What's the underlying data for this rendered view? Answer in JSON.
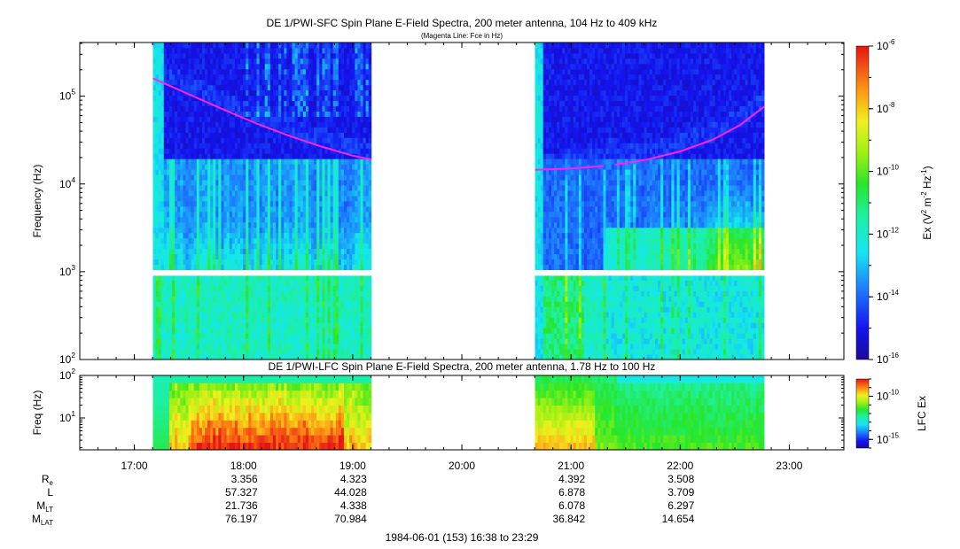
{
  "chart_data": [
    {
      "type": "heatmap",
      "title": "DE 1/PWI-SFC  Spin Plane E-Field Spectra, 200 meter antenna, 104 Hz to 409 kHz",
      "subtitle": "(Magenta Line: Fce in Hz)",
      "ylabel": "Frequency (Hz)",
      "yscale": "log",
      "ylim": [
        100,
        409000
      ],
      "y_ticks": [
        {
          "value": 100,
          "base": "10",
          "exp": "2"
        },
        {
          "value": 1000,
          "base": "10",
          "exp": "3"
        },
        {
          "value": 10000,
          "base": "10",
          "exp": "4"
        },
        {
          "value": 100000,
          "base": "10",
          "exp": "5"
        }
      ],
      "x_range_hours": [
        16.5,
        23.5
      ],
      "data_intervals_hours": [
        [
          17.17,
          19.17
        ],
        [
          20.67,
          22.77
        ]
      ],
      "gap_band_hz": [
        900,
        1000
      ],
      "fce_line": {
        "label": "Fce in Hz",
        "color": "#ff22ff",
        "segments": [
          {
            "t": [
              17.17,
              17.5,
              17.8,
              18.1,
              18.4,
              18.7,
              19.0,
              19.17
            ],
            "hz": [
              160000,
              105000,
              72000,
              50000,
              36000,
              27000,
              21000,
              19000
            ]
          },
          {
            "t": [
              20.67,
              21.0,
              21.3
            ],
            "hz": [
              14500,
              15000,
              16000
            ]
          },
          {
            "t": [
              21.4,
              21.7,
              22.0,
              22.3,
              22.55,
              22.77
            ],
            "hz": [
              16500,
              19000,
              23500,
              32000,
              47000,
              76000
            ]
          }
        ]
      },
      "colorbar": {
        "label_text": "Ex (V",
        "label_sup1": "2",
        "label_mid": " m",
        "label_sup2": "-2",
        "label_mid2": " Hz",
        "label_sup3": "-1",
        "label_end": ")",
        "scale": "log",
        "range": [
          1e-16,
          1e-06
        ],
        "ticks": [
          {
            "value": 1e-06,
            "base": "10",
            "exp": "-6"
          },
          {
            "value": 1e-08,
            "base": "10",
            "exp": "-8"
          },
          {
            "value": 1e-10,
            "base": "10",
            "exp": "-10"
          },
          {
            "value": 1e-12,
            "base": "10",
            "exp": "-12"
          },
          {
            "value": 1e-14,
            "base": "10",
            "exp": "-14"
          },
          {
            "value": 1e-16,
            "base": "10",
            "exp": "-16"
          }
        ]
      }
    },
    {
      "type": "heatmap",
      "title": "DE 1/PWI-LFC  Spin Plane E-Field Spectra, 200 meter antenna, 1.78 Hz to 100 Hz",
      "ylabel": "Freq (Hz)",
      "yscale": "log",
      "ylim": [
        1.78,
        100
      ],
      "y_ticks": [
        {
          "value": 10,
          "base": "10",
          "exp": "1"
        },
        {
          "value": 100,
          "base": "10",
          "exp": "2"
        }
      ],
      "x_range_hours": [
        16.5,
        23.5
      ],
      "data_intervals_hours": [
        [
          17.17,
          19.17
        ],
        [
          20.67,
          22.77
        ]
      ],
      "colorbar": {
        "label": "LFC Ex",
        "scale": "log",
        "range": [
          1e-16,
          1e-08
        ],
        "ticks": [
          {
            "value": 1e-10,
            "base": "10",
            "exp": "-10"
          },
          {
            "value": 1e-15,
            "base": "10",
            "exp": "-15"
          }
        ]
      }
    }
  ],
  "x_axis": {
    "ticks": [
      {
        "hours": 17,
        "label": "17:00"
      },
      {
        "hours": 18,
        "label": "18:00"
      },
      {
        "hours": 19,
        "label": "19:00"
      },
      {
        "hours": 20,
        "label": "20:00"
      },
      {
        "hours": 21,
        "label": "21:00"
      },
      {
        "hours": 22,
        "label": "22:00"
      },
      {
        "hours": 23,
        "label": "23:00"
      }
    ],
    "minor_step_hours": 0.1667
  },
  "ephemeris": {
    "rows": [
      {
        "name": "R",
        "sub": "e",
        "values": [
          "3.356",
          "4.323",
          "",
          "4.392",
          "3.508"
        ]
      },
      {
        "name": "L",
        "sub": "",
        "values": [
          "57.327",
          "44.028",
          "",
          "6.878",
          "3.709"
        ]
      },
      {
        "name": "M",
        "sub": "LT",
        "values": [
          "21.736",
          "4.338",
          "",
          "6.078",
          "6.297"
        ]
      },
      {
        "name": "M",
        "sub": "LAT",
        "values": [
          "76.197",
          "70.984",
          "",
          "36.842",
          "14.654"
        ]
      }
    ],
    "column_hours": [
      18,
      19,
      20,
      21,
      22
    ]
  },
  "footer": "1984-06-01 (153) 16:38 to 23:29"
}
